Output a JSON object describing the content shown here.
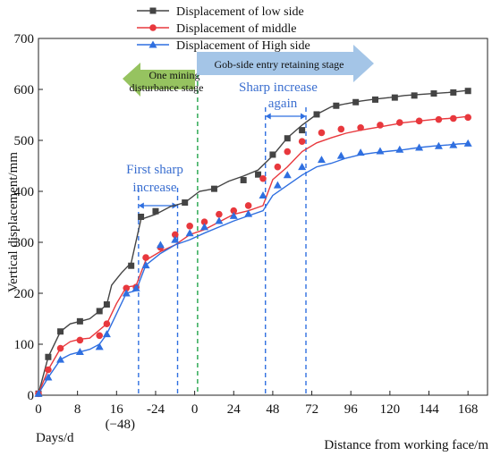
{
  "chart_data": {
    "type": "line",
    "xlabel": "Distance from working face/m",
    "xlabel_secondary": "Days/d",
    "ylabel": "Vertical displacement/mm",
    "ylim": [
      0,
      700
    ],
    "yticks": [
      0,
      100,
      200,
      300,
      400,
      500,
      600,
      700
    ],
    "xticks": [
      {
        "value": 0,
        "label": "0"
      },
      {
        "value": 8,
        "label": "8"
      },
      {
        "value": 16,
        "label": "16"
      },
      {
        "value": 24,
        "label": "-24"
      },
      {
        "value": 32,
        "label": "0"
      },
      {
        "value": 40,
        "label": "24"
      },
      {
        "value": 48,
        "label": "48"
      },
      {
        "value": 56,
        "label": "72"
      },
      {
        "value": 64,
        "label": "96"
      },
      {
        "value": 72,
        "label": "120"
      },
      {
        "value": 80,
        "label": "144"
      },
      {
        "value": 88,
        "label": "168"
      }
    ],
    "xtick_secondary": {
      "value": 16,
      "label": "(−48)"
    },
    "xlim": [
      0,
      92
    ],
    "series": [
      {
        "name": "Displacement of low side",
        "color": "#444444",
        "marker": "square",
        "points": [
          [
            0,
            3
          ],
          [
            2,
            75
          ],
          [
            4.5,
            125
          ],
          [
            6.5,
            140
          ],
          [
            8.5,
            145
          ],
          [
            10.5,
            150
          ],
          [
            12.5,
            165
          ],
          [
            14,
            178
          ],
          [
            15,
            216
          ],
          [
            17,
            240
          ],
          [
            19,
            260
          ],
          [
            21,
            345
          ],
          [
            24,
            355
          ],
          [
            27,
            370
          ],
          [
            30,
            378
          ],
          [
            33,
            400
          ],
          [
            36,
            405
          ],
          [
            39,
            420
          ],
          [
            42,
            430
          ],
          [
            45,
            442
          ],
          [
            48,
            470
          ],
          [
            51,
            505
          ],
          [
            54,
            530
          ],
          [
            57,
            551
          ],
          [
            60,
            566
          ],
          [
            63,
            572
          ],
          [
            66,
            577
          ],
          [
            69,
            581
          ],
          [
            72,
            584
          ],
          [
            75,
            588
          ],
          [
            78,
            590
          ],
          [
            81,
            592
          ],
          [
            84,
            594
          ],
          [
            86,
            596
          ],
          [
            88,
            598
          ]
        ],
        "marker_points": [
          [
            0,
            3
          ],
          [
            2,
            75
          ],
          [
            4.5,
            125
          ],
          [
            8.5,
            145
          ],
          [
            12.5,
            165
          ],
          [
            14,
            178
          ],
          [
            19,
            254
          ],
          [
            21,
            350
          ],
          [
            24,
            361
          ],
          [
            30,
            378
          ],
          [
            36,
            405
          ],
          [
            42,
            422
          ],
          [
            45,
            433
          ],
          [
            48,
            472
          ],
          [
            51,
            504
          ],
          [
            54,
            520
          ],
          [
            57,
            551
          ],
          [
            61,
            568
          ],
          [
            65,
            575
          ],
          [
            69,
            580
          ],
          [
            73,
            584
          ],
          [
            77,
            588
          ],
          [
            81,
            592
          ],
          [
            85,
            594
          ],
          [
            88,
            597
          ]
        ]
      },
      {
        "name": "Displacement of middle",
        "color": "#e8383d",
        "marker": "circle",
        "points": [
          [
            0,
            3
          ],
          [
            2,
            50
          ],
          [
            4.5,
            92
          ],
          [
            6.5,
            105
          ],
          [
            8.5,
            110
          ],
          [
            10.5,
            112
          ],
          [
            12.5,
            128
          ],
          [
            14,
            140
          ],
          [
            16,
            180
          ],
          [
            18,
            212
          ],
          [
            20,
            215
          ],
          [
            22,
            265
          ],
          [
            25,
            282
          ],
          [
            28,
            295
          ],
          [
            31,
            315
          ],
          [
            34,
            325
          ],
          [
            37,
            340
          ],
          [
            40,
            355
          ],
          [
            43,
            362
          ],
          [
            46,
            372
          ],
          [
            48,
            423
          ],
          [
            51,
            448
          ],
          [
            54,
            478
          ],
          [
            57,
            495
          ],
          [
            60,
            505
          ],
          [
            63,
            514
          ],
          [
            66,
            520
          ],
          [
            69,
            525
          ],
          [
            72,
            530
          ],
          [
            75,
            535
          ],
          [
            78,
            538
          ],
          [
            81,
            541
          ],
          [
            84,
            543
          ],
          [
            86,
            545
          ],
          [
            88,
            547
          ]
        ],
        "marker_points": [
          [
            0,
            3
          ],
          [
            2,
            50
          ],
          [
            4.5,
            92
          ],
          [
            8.5,
            108
          ],
          [
            12.5,
            117
          ],
          [
            14,
            140
          ],
          [
            18,
            210
          ],
          [
            20,
            212
          ],
          [
            22,
            270
          ],
          [
            25,
            290
          ],
          [
            28,
            315
          ],
          [
            31,
            332
          ],
          [
            34,
            340
          ],
          [
            37,
            355
          ],
          [
            40,
            362
          ],
          [
            43,
            372
          ],
          [
            46,
            425
          ],
          [
            49,
            448
          ],
          [
            51,
            478
          ],
          [
            54,
            498
          ],
          [
            58,
            515
          ],
          [
            62,
            522
          ],
          [
            66,
            525
          ],
          [
            70,
            530
          ],
          [
            74,
            535
          ],
          [
            78,
            538
          ],
          [
            82,
            541
          ],
          [
            85,
            543
          ],
          [
            88,
            545
          ]
        ]
      },
      {
        "name": "Displacement of High side",
        "color": "#2f6fe0",
        "marker": "triangle",
        "points": [
          [
            0,
            3
          ],
          [
            2,
            35
          ],
          [
            4.5,
            70
          ],
          [
            6.5,
            80
          ],
          [
            8.5,
            85
          ],
          [
            10.5,
            90
          ],
          [
            12.5,
            100
          ],
          [
            14,
            120
          ],
          [
            16,
            160
          ],
          [
            18,
            200
          ],
          [
            20,
            205
          ],
          [
            22,
            255
          ],
          [
            25,
            278
          ],
          [
            28,
            295
          ],
          [
            31,
            305
          ],
          [
            34,
            318
          ],
          [
            37,
            330
          ],
          [
            40,
            342
          ],
          [
            43,
            352
          ],
          [
            46,
            362
          ],
          [
            48,
            392
          ],
          [
            51,
            412
          ],
          [
            54,
            432
          ],
          [
            57,
            448
          ],
          [
            60,
            455
          ],
          [
            63,
            465
          ],
          [
            66,
            472
          ],
          [
            69,
            476
          ],
          [
            72,
            479
          ],
          [
            75,
            482
          ],
          [
            78,
            486
          ],
          [
            81,
            489
          ],
          [
            84,
            491
          ],
          [
            86,
            493
          ],
          [
            88,
            494
          ]
        ],
        "marker_points": [
          [
            0,
            3
          ],
          [
            2,
            35
          ],
          [
            4.5,
            70
          ],
          [
            8.5,
            85
          ],
          [
            12.5,
            95
          ],
          [
            14,
            120
          ],
          [
            18,
            200
          ],
          [
            20,
            210
          ],
          [
            22,
            255
          ],
          [
            25,
            295
          ],
          [
            28,
            305
          ],
          [
            31,
            318
          ],
          [
            34,
            330
          ],
          [
            37,
            342
          ],
          [
            40,
            352
          ],
          [
            43,
            356
          ],
          [
            46,
            392
          ],
          [
            49,
            412
          ],
          [
            51,
            432
          ],
          [
            54,
            448
          ],
          [
            58,
            462
          ],
          [
            62,
            470
          ],
          [
            66,
            476
          ],
          [
            70,
            479
          ],
          [
            74,
            482
          ],
          [
            78,
            486
          ],
          [
            82,
            489
          ],
          [
            85,
            491
          ],
          [
            88,
            494
          ]
        ]
      }
    ],
    "vlines": [
      {
        "x": 20.5,
        "color": "#2f6fe0",
        "style": "dashed"
      },
      {
        "x": 28.5,
        "color": "#2f6fe0",
        "style": "dashed"
      },
      {
        "x": 32.6,
        "color": "#22a34a",
        "style": "dashed"
      },
      {
        "x": 46.5,
        "color": "#2f6fe0",
        "style": "dashed"
      },
      {
        "x": 54.8,
        "color": "#2f6fe0",
        "style": "dashed"
      }
    ],
    "annotations": [
      {
        "text": "First sharp",
        "color": "#3b6fd0"
      },
      {
        "text": "increase",
        "color": "#3b6fd0"
      },
      {
        "text": "Sharp increase",
        "color": "#3b6fd0"
      },
      {
        "text": "again",
        "color": "#3b6fd0"
      }
    ],
    "stages": [
      {
        "text_lines": [
          "One mining",
          "disturbance stage"
        ],
        "color": "#90c057",
        "direction": "left"
      },
      {
        "text_lines": [
          "Gob-side entry retaining  stage"
        ],
        "color": "#9fc2e6",
        "direction": "right"
      }
    ],
    "legend_position": "top-center"
  }
}
